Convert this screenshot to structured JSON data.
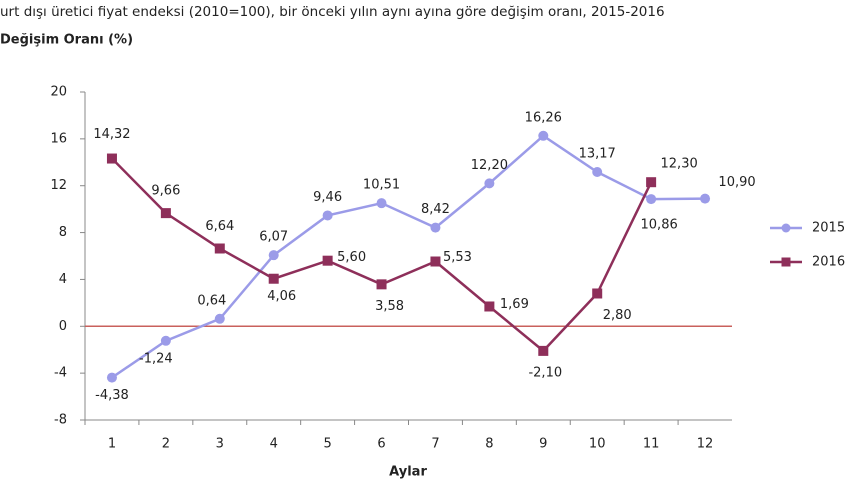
{
  "chart_data": {
    "type": "line",
    "title": "urt dışı üretici fiyat endeksi (2010=100), bir önceki yılın aynı ayına göre değişim oranı, 2015-2016",
    "subtitle": "Değişim Oranı (%)",
    "x_label": "Aylar",
    "categories": [
      "1",
      "2",
      "3",
      "4",
      "5",
      "6",
      "7",
      "8",
      "9",
      "10",
      "11",
      "12"
    ],
    "series": [
      {
        "name": "2015",
        "color": "#9b9be8",
        "values": [
          -4.38,
          -1.24,
          0.64,
          6.07,
          9.46,
          10.51,
          8.42,
          12.2,
          16.26,
          13.17,
          10.86,
          10.9
        ],
        "value_labels": [
          "-4,38",
          "-1,24",
          "0,64",
          "6,07",
          "9,46",
          "10,51",
          "8,42",
          "12,20",
          "16,26",
          "13,17",
          "10,86",
          "10,90"
        ]
      },
      {
        "name": "2016",
        "color": "#8e2f5a",
        "values": [
          14.32,
          9.66,
          6.64,
          4.06,
          5.6,
          3.58,
          5.53,
          1.69,
          -2.1,
          2.8,
          12.3,
          null
        ],
        "value_labels": [
          "14,32",
          "9,66",
          "6,64",
          "4,06",
          "5,60",
          "3,58",
          "5,53",
          "1,69",
          "-2,10",
          "2,80",
          "12,30",
          null
        ]
      }
    ],
    "ylim": [
      -8,
      20
    ],
    "yticks": [
      -8,
      -4,
      0,
      4,
      8,
      12,
      16,
      20
    ],
    "zero_line_color": "#c9605c",
    "legend": "right"
  }
}
